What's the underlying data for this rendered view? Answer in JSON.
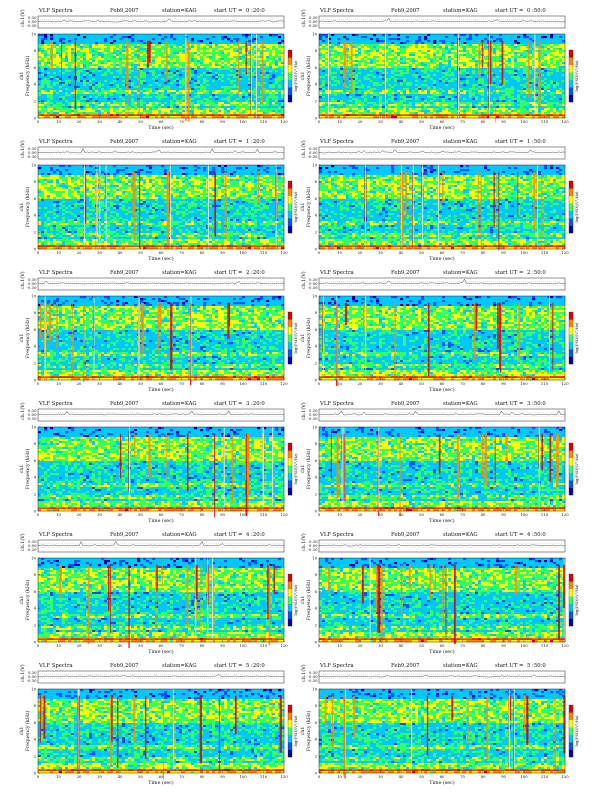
{
  "common": {
    "title": "VLF Spectra",
    "date": "Feb9,2007",
    "station": "station=KAG",
    "start_prefix": "start  UT  ="
  },
  "panels": [
    {
      "start": "0 :20:0"
    },
    {
      "start": "0 :50:0"
    },
    {
      "start": "1 :20:0"
    },
    {
      "start": "1 :50:0"
    },
    {
      "start": "2 :20:0"
    },
    {
      "start": "2 :50:0"
    },
    {
      "start": "3 :20:0"
    },
    {
      "start": "3 :50:0"
    },
    {
      "start": "4 :20:0"
    },
    {
      "start": "4 :50:0"
    },
    {
      "start": "5 :20:0"
    },
    {
      "start": "5 :50:0"
    }
  ],
  "chart_data": {
    "type": "heatmap",
    "grid_layout": "6 rows x 2 columns of spectrogram panels",
    "waveform_panel": {
      "ylabel": "ch.1(V)",
      "yticks": [
        "0.30",
        "0.00",
        "-0.30"
      ],
      "ylim": [
        -0.3,
        0.3
      ]
    },
    "spectrogram": {
      "xlabel": "Time (sec)",
      "xlim": [
        0,
        120
      ],
      "xticks": [
        0,
        10,
        20,
        30,
        40,
        50,
        60,
        70,
        80,
        90,
        100,
        110,
        120
      ],
      "ylabel_primary": "ch1",
      "ylabel": "Frequency (kHz)",
      "ylim": [
        0,
        10
      ],
      "yticks": [
        0,
        2,
        4,
        6,
        8,
        10
      ],
      "colorbar_label": "log(PSD)(V²/Hz)",
      "colorscale": [
        "#0000aa",
        "#0055ff",
        "#00c8ff",
        "#33ff66",
        "#ffff00",
        "#ff8800",
        "#dd0000",
        "#ffffff"
      ]
    },
    "series": []
  }
}
